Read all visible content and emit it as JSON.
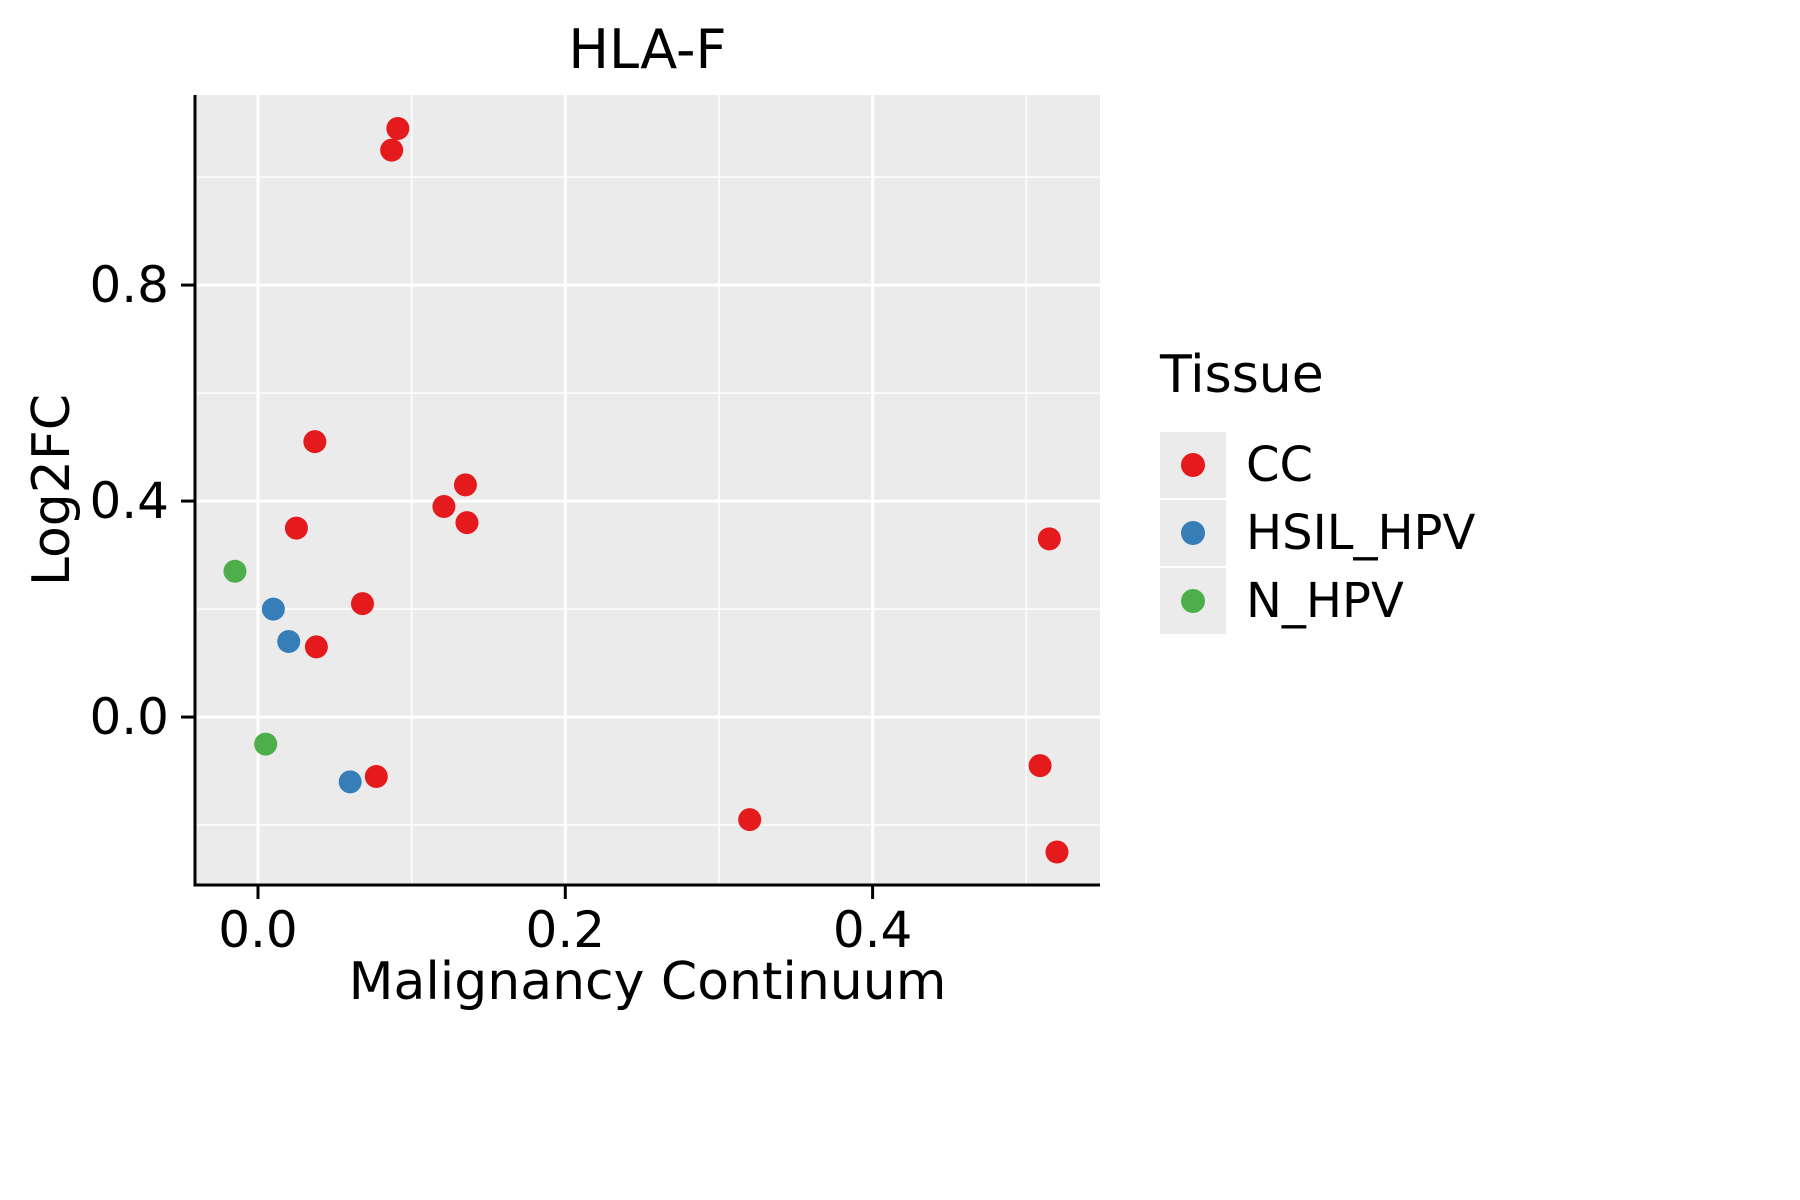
{
  "chart_data": {
    "type": "scatter",
    "title": "HLA-F",
    "xlabel": "Malignancy Continuum",
    "ylabel": "Log2FC",
    "legend_title": "Tissue",
    "legend_position": "right",
    "grid": true,
    "xlim": [
      -0.041,
      0.548
    ],
    "ylim": [
      -0.311,
      1.152
    ],
    "x_ticks": [
      0.0,
      0.2,
      0.4
    ],
    "x_tick_labels": [
      "0.0",
      "0.2",
      "0.4"
    ],
    "y_ticks": [
      0.0,
      0.4,
      0.8
    ],
    "y_tick_labels": [
      "0.0",
      "0.4",
      "0.8"
    ],
    "x_minor_ticks": [
      0.1,
      0.3,
      0.5
    ],
    "y_minor_ticks": [
      -0.2,
      0.2,
      0.6,
      1.0
    ],
    "colors": {
      "panel_background": "#EBEBEB",
      "gridline": "#FFFFFF",
      "axis_line": "#000000",
      "text": "#000000"
    },
    "series": [
      {
        "name": "CC",
        "color": "#E41A1C",
        "points": [
          [
            0.091,
            1.09
          ],
          [
            0.087,
            1.05
          ],
          [
            0.037,
            0.51
          ],
          [
            0.135,
            0.43
          ],
          [
            0.121,
            0.39
          ],
          [
            0.136,
            0.36
          ],
          [
            0.025,
            0.35
          ],
          [
            0.515,
            0.33
          ],
          [
            0.068,
            0.21
          ],
          [
            0.038,
            0.13
          ],
          [
            0.077,
            -0.11
          ],
          [
            0.509,
            -0.09
          ],
          [
            0.32,
            -0.19
          ],
          [
            0.52,
            -0.25
          ]
        ]
      },
      {
        "name": "HSIL_HPV",
        "color": "#377EB8",
        "points": [
          [
            0.01,
            0.2
          ],
          [
            0.02,
            0.14
          ],
          [
            0.06,
            -0.12
          ]
        ]
      },
      {
        "name": "N_HPV",
        "color": "#4DAF4A",
        "points": [
          [
            -0.015,
            0.27
          ],
          [
            0.005,
            -0.05
          ]
        ]
      }
    ]
  }
}
